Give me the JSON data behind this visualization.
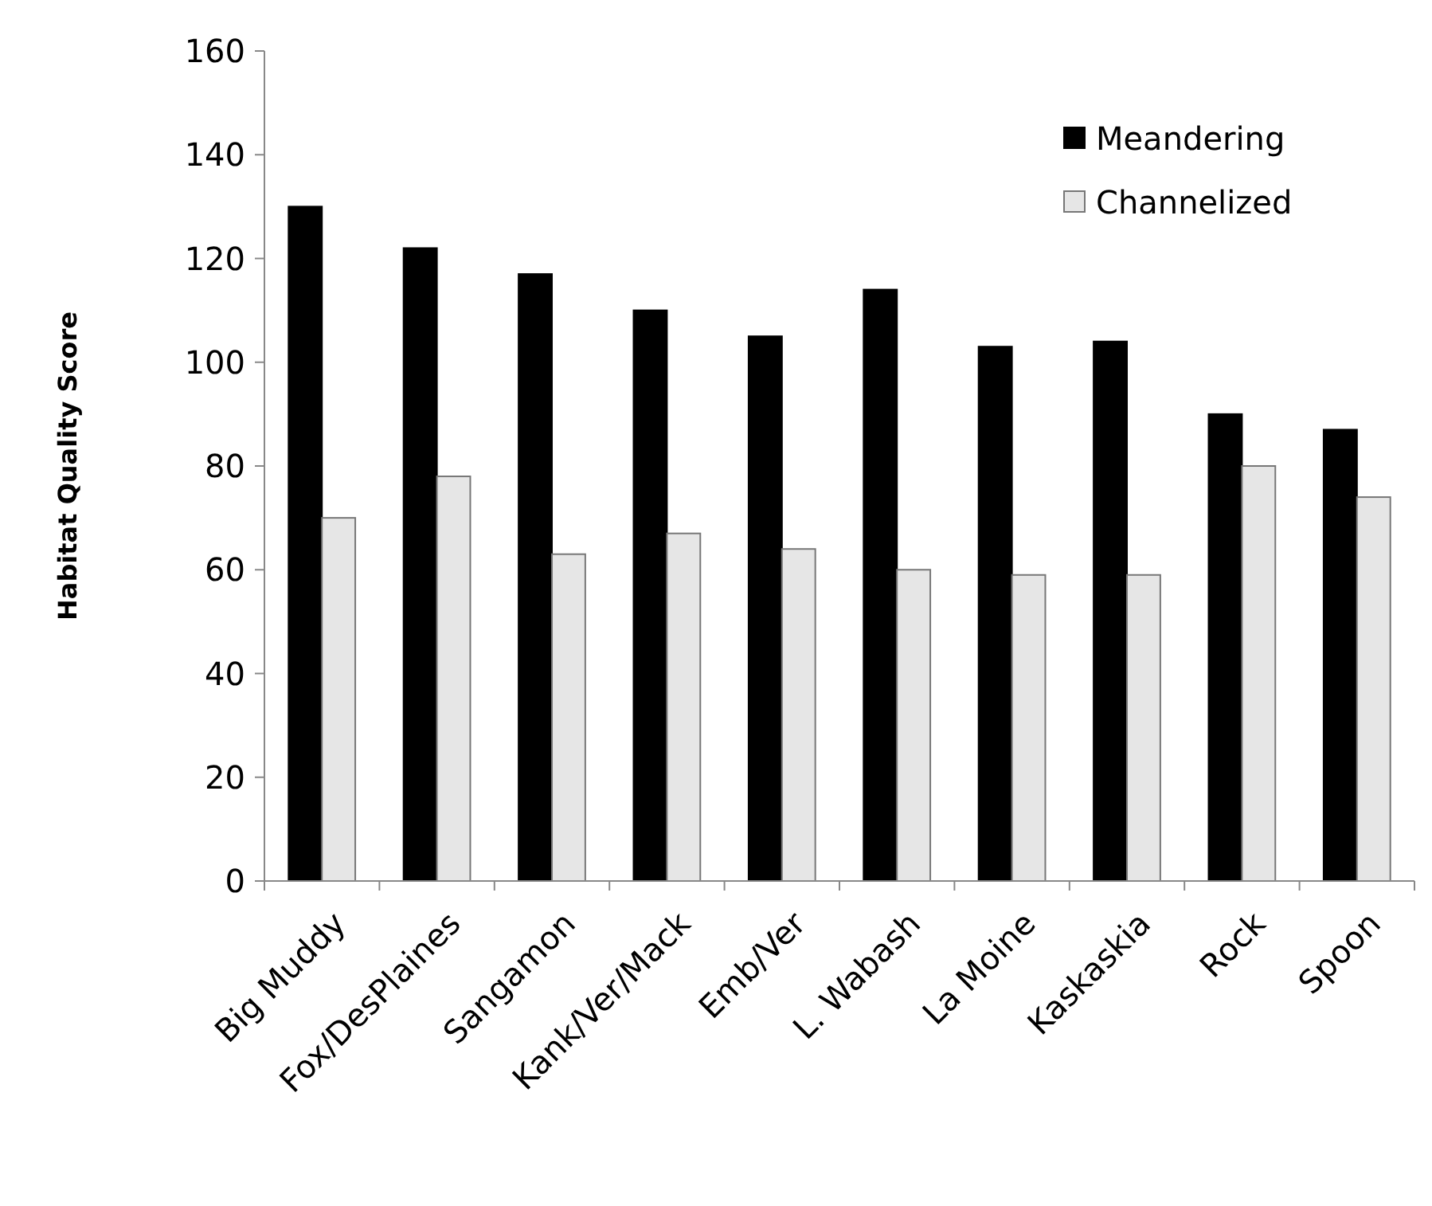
{
  "chart_data": {
    "type": "bar",
    "ylabel": "Habitat Quality Score",
    "categories": [
      "Big Muddy",
      "Fox/DesPlaines",
      "Sangamon",
      "Kank/Ver/Mack",
      "Emb/Ver",
      "L. Wabash",
      "La Moine",
      "Kaskaskia",
      "Rock",
      "Spoon"
    ],
    "series": [
      {
        "name": "Meandering",
        "color": "#000000",
        "values": [
          130,
          122,
          117,
          110,
          105,
          114,
          103,
          104,
          90,
          87
        ]
      },
      {
        "name": "Channelized",
        "color": "#e6e6e6",
        "values": [
          70,
          78,
          63,
          67,
          64,
          60,
          59,
          59,
          80,
          74
        ]
      }
    ],
    "ylim": [
      0,
      160
    ],
    "yticks": [
      0,
      20,
      40,
      60,
      80,
      100,
      120,
      140,
      160
    ],
    "grid": false,
    "legend": "top right"
  }
}
